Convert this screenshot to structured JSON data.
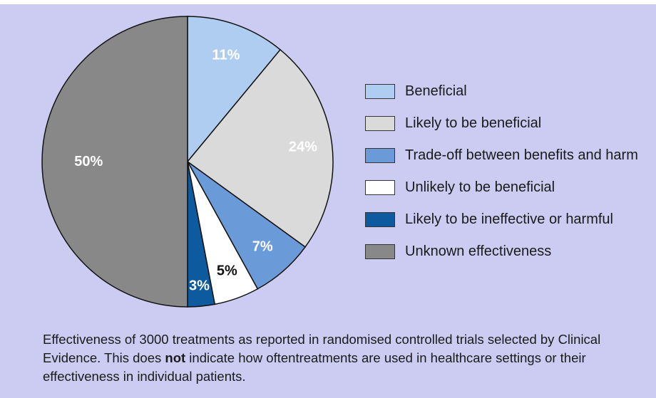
{
  "chart_data": {
    "type": "pie",
    "slices": [
      {
        "label": "Beneficial",
        "value": 11,
        "display": "11%",
        "color": "#aecdf0",
        "text_color": "#ffffff"
      },
      {
        "label": "Likely to be beneficial",
        "value": 24,
        "display": "24%",
        "color": "#dadada",
        "text_color": "#ffffff"
      },
      {
        "label": "Trade-off between benefits and harm",
        "value": 7,
        "display": "7%",
        "color": "#6b9ad8",
        "text_color": "#ffffff"
      },
      {
        "label": "Unlikely to be beneficial",
        "value": 5,
        "display": "5%",
        "color": "#ffffff",
        "text_color": "#111111"
      },
      {
        "label": "Likely to be ineffective or harmful",
        "value": 3,
        "display": "3%",
        "color": "#0d5a9e",
        "text_color": "#ffffff"
      },
      {
        "label": "Unknown effectiveness",
        "value": 50,
        "display": "50%",
        "color": "#888888",
        "text_color": "#ffffff"
      }
    ],
    "legend_position": "right"
  },
  "caption": {
    "part1": "Effectiveness of 3000 treatments as reported in randomised controlled trials selected by Clinical Evidence. This does ",
    "emphasis": "not",
    "part2": " indicate how oftentreatments are used in healthcare settings or their effectiveness in individual patients."
  },
  "colors": {
    "background": "#ccccf2"
  }
}
